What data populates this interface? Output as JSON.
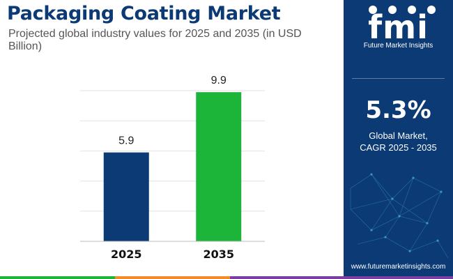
{
  "header": {
    "title": "Packaging Coating Market",
    "subtitle": "Projected global industry values for 2025 and 2035 (in USD Billion)"
  },
  "chart_data": {
    "type": "bar",
    "title": "Packaging Coating Market",
    "subtitle": "Projected global industry values for 2025 and 2035 (in USD Billion)",
    "categories": [
      "2025",
      "2035"
    ],
    "values": [
      5.9,
      9.9
    ],
    "value_labels": [
      "5.9",
      "9.9"
    ],
    "colors": [
      "#0b3a74",
      "#1db43a"
    ],
    "ylim": [
      0,
      10
    ],
    "grid": true,
    "xlabel": "",
    "ylabel": ""
  },
  "sidebar": {
    "logo_text": "fmi",
    "logo_tagline": "Future Market Insights",
    "cagr_value": "5.3%",
    "cagr_label_line1": "Global Market,",
    "cagr_label_line2": "CAGR 2025 - 2035",
    "website": "www.futuremarketinsights.com"
  },
  "colors": {
    "brand_navy": "#0b3a74",
    "accent_green": "#1db43a",
    "footer": [
      "#1db43a",
      "#f28c28",
      "#7a3fa0"
    ]
  }
}
